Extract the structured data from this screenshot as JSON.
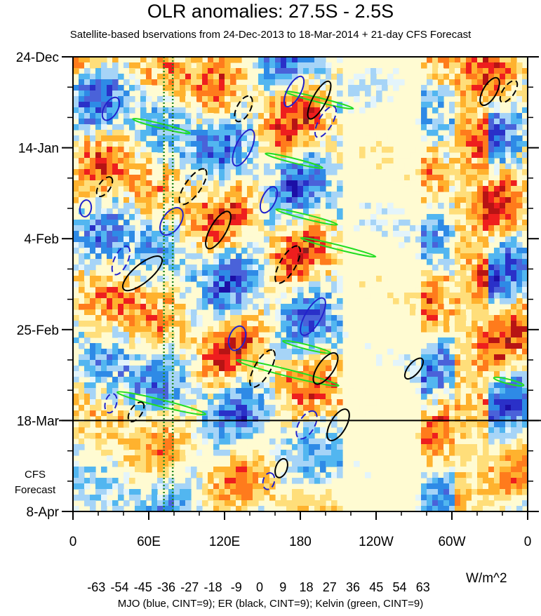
{
  "chart_data": {
    "type": "heatmap",
    "title": "OLR anomalies: 27.5S - 2.5S",
    "subtitle": "Satellite-based bservations from 24-Dec-2013 to 18-Mar-2014 + 21-day CFS Forecast",
    "x_ticks": [
      "0",
      "60E",
      "120E",
      "180",
      "120W",
      "60W",
      "0"
    ],
    "x_tick_lon": [
      0,
      60,
      120,
      180,
      240,
      300,
      360
    ],
    "y_ticks": [
      "24-Dec",
      "14-Jan",
      "4-Feb",
      "25-Feb",
      "18-Mar",
      "8-Apr"
    ],
    "y_tick_day": [
      0,
      21,
      42,
      63,
      84,
      105
    ],
    "ylim_days": [
      0,
      105
    ],
    "xlim_lon": [
      0,
      360
    ],
    "forecast_start_day": 84,
    "forecast_label_1": "CFS",
    "forecast_label_2": "Forecast",
    "colorbar_levels": [
      -63,
      -54,
      -45,
      -36,
      -27,
      -18,
      -9,
      0,
      9,
      18,
      27,
      36,
      45,
      54,
      63
    ],
    "colorbar_labels": [
      "-63",
      "-54",
      "-45",
      "-36",
      "-27",
      "-18",
      "-9",
      "0",
      "9",
      "18",
      "27",
      "36",
      "45",
      "54",
      "63"
    ],
    "colorbar_colors": [
      "#8b2be2",
      "#1c0fa6",
      "#2a30c8",
      "#4a62d9",
      "#2e8ae6",
      "#52b6f0",
      "#a6d4f7",
      "#e3f4fb",
      "#fffbd2",
      "#ffde7a",
      "#ffb22e",
      "#ff7b1c",
      "#ee1e1e",
      "#b71414",
      "#8f1f1f",
      "#ff80c8"
    ],
    "units": "W/m^2",
    "footer": "MJO (blue, CINT=9); ER (black, CINT=9); Kelvin (green, CINT=9)",
    "contours": {
      "mjo_color": "#2222cc",
      "er_color": "#000000",
      "kelvin_color": "#22dd22"
    },
    "mjo_features": [
      {
        "lon": 30,
        "day": 12,
        "a": 18,
        "b": 6,
        "ang": -60,
        "neg": false
      },
      {
        "lon": 10,
        "day": 35,
        "a": 12,
        "b": 5,
        "ang": -80,
        "neg": false
      },
      {
        "lon": 38,
        "day": 47,
        "a": 22,
        "b": 6,
        "ang": -65,
        "neg": true
      },
      {
        "lon": 78,
        "day": 38,
        "a": 22,
        "b": 8,
        "ang": -55,
        "neg": false
      },
      {
        "lon": 135,
        "day": 21,
        "a": 28,
        "b": 7,
        "ang": -65,
        "neg": false
      },
      {
        "lon": 155,
        "day": 33,
        "a": 20,
        "b": 6,
        "ang": -65,
        "neg": false
      },
      {
        "lon": 130,
        "day": 65,
        "a": 18,
        "b": 7,
        "ang": -70,
        "neg": false
      },
      {
        "lon": 190,
        "day": 60,
        "a": 30,
        "b": 7,
        "ang": -60,
        "neg": false
      },
      {
        "lon": 185,
        "day": 85,
        "a": 22,
        "b": 7,
        "ang": -60,
        "neg": true
      },
      {
        "lon": 30,
        "day": 80,
        "a": 14,
        "b": 5,
        "ang": -75,
        "neg": true
      },
      {
        "lon": 155,
        "day": 98,
        "a": 12,
        "b": 5,
        "ang": -75,
        "neg": true
      },
      {
        "lon": 200,
        "day": 15,
        "a": 25,
        "b": 6,
        "ang": -60,
        "neg": true
      },
      {
        "lon": 175,
        "day": 8,
        "a": 24,
        "b": 6,
        "ang": -62,
        "neg": false
      }
    ],
    "er_features": [
      {
        "lon": 135,
        "day": 12,
        "a": 20,
        "b": 6,
        "ang": -62,
        "neg": true
      },
      {
        "lon": 95,
        "day": 30,
        "a": 30,
        "b": 7,
        "ang": -55,
        "neg": true
      },
      {
        "lon": 55,
        "day": 50,
        "a": 35,
        "b": 8,
        "ang": -40,
        "neg": false
      },
      {
        "lon": 115,
        "day": 40,
        "a": 30,
        "b": 7,
        "ang": -60,
        "neg": false
      },
      {
        "lon": 170,
        "day": 48,
        "a": 30,
        "b": 7,
        "ang": -60,
        "neg": true
      },
      {
        "lon": 150,
        "day": 72,
        "a": 30,
        "b": 7,
        "ang": -60,
        "neg": true
      },
      {
        "lon": 200,
        "day": 72,
        "a": 26,
        "b": 7,
        "ang": -55,
        "neg": false
      },
      {
        "lon": 210,
        "day": 85,
        "a": 25,
        "b": 7,
        "ang": -60,
        "neg": false
      },
      {
        "lon": 165,
        "day": 95,
        "a": 14,
        "b": 5,
        "ang": -70,
        "neg": false
      },
      {
        "lon": 50,
        "day": 82,
        "a": 16,
        "b": 5,
        "ang": -55,
        "neg": true
      },
      {
        "lon": 270,
        "day": 72,
        "a": 18,
        "b": 5,
        "ang": -50,
        "neg": false
      },
      {
        "lon": 330,
        "day": 8,
        "a": 22,
        "b": 6,
        "ang": -60,
        "neg": false
      },
      {
        "lon": 345,
        "day": 8,
        "a": 18,
        "b": 5,
        "ang": -55,
        "neg": true
      },
      {
        "lon": 195,
        "day": 10,
        "a": 30,
        "b": 6,
        "ang": -62,
        "neg": false
      },
      {
        "lon": 25,
        "day": 30,
        "a": 16,
        "b": 5,
        "ang": -55,
        "neg": true
      }
    ],
    "kelvin_features": [
      {
        "lon": 70,
        "day": 16,
        "a": 42,
        "b": 2,
        "ang": 14,
        "neg": false
      },
      {
        "lon": 195,
        "day": 10,
        "a": 50,
        "b": 2,
        "ang": 14,
        "neg": false
      },
      {
        "lon": 175,
        "day": 24,
        "a": 42,
        "b": 2,
        "ang": 14,
        "neg": false
      },
      {
        "lon": 185,
        "day": 37,
        "a": 45,
        "b": 2,
        "ang": 14,
        "neg": false
      },
      {
        "lon": 210,
        "day": 44,
        "a": 55,
        "b": 2,
        "ang": 14,
        "neg": false
      },
      {
        "lon": 185,
        "day": 67,
        "a": 35,
        "b": 2,
        "ang": 14,
        "neg": false
      },
      {
        "lon": 170,
        "day": 73,
        "a": 75,
        "b": 3,
        "ang": 14,
        "neg": false
      },
      {
        "lon": 70,
        "day": 80,
        "a": 65,
        "b": 3,
        "ang": 14,
        "neg": false
      },
      {
        "lon": 345,
        "day": 75,
        "a": 22,
        "b": 2,
        "ang": 14,
        "neg": false
      }
    ],
    "dotted_lines_lon": [
      72,
      79
    ],
    "dotted_color": "#228822"
  }
}
